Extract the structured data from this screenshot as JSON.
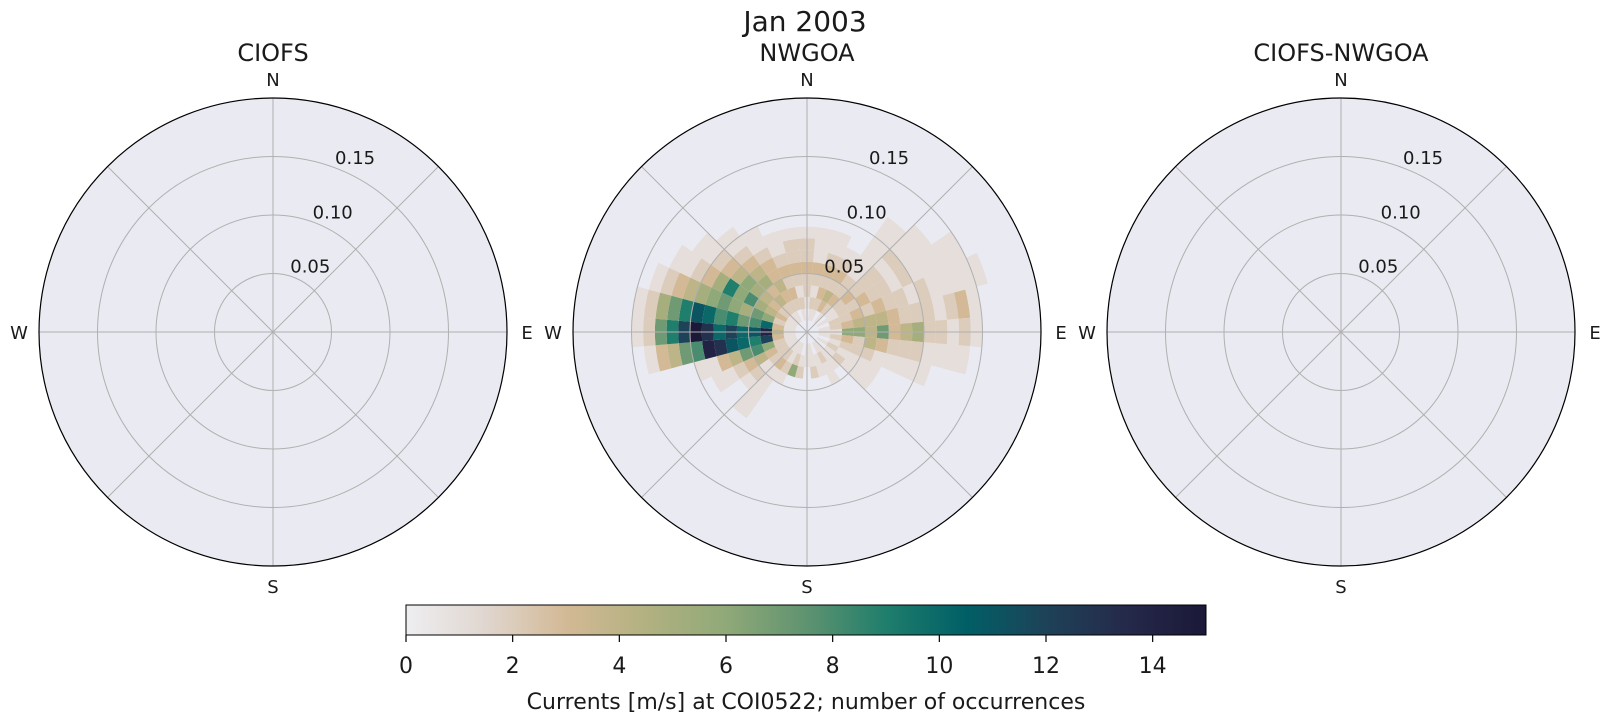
{
  "suptitle": "Jan 2003",
  "chart_data": {
    "type": "polar-histogram",
    "panels": [
      {
        "title": "CIOFS",
        "has_data": false
      },
      {
        "title": "NWGOA",
        "has_data": true
      },
      {
        "title": "CIOFS-NWGOA",
        "has_data": false
      }
    ],
    "compass": {
      "n": "N",
      "e": "E",
      "s": "S",
      "w": "W"
    },
    "radial": {
      "rmax": 0.2,
      "rings": [
        0.05,
        0.1,
        0.15,
        0.2
      ],
      "tick_labels": [
        "0.05",
        "0.10",
        "0.15"
      ],
      "tick_angle_deg": 22.5
    },
    "colorbar": {
      "label": "Currents [m/s] at COI0522; number of occurrences",
      "min": 0,
      "max": 15,
      "ticks": [
        "0",
        "2",
        "4",
        "6",
        "8",
        "10",
        "12",
        "14"
      ],
      "colormap": [
        "#eeeef1",
        "#e0d6cf",
        "#d3b995",
        "#b2b181",
        "#90a978",
        "#5f9370",
        "#1f7e6c",
        "#005f66",
        "#1e4258",
        "#25294a",
        "#1b1838"
      ]
    },
    "bin_width_m_s": 0.01,
    "sector_width_deg": 10,
    "nwgoa_counts": [
      {
        "dir_deg": 0,
        "counts": [
          0,
          0,
          1,
          2,
          2,
          3,
          2,
          2,
          1
        ]
      },
      {
        "dir_deg": 10,
        "counts": [
          0,
          1,
          2,
          1,
          2,
          3,
          1,
          1,
          1
        ]
      },
      {
        "dir_deg": 20,
        "counts": [
          0,
          1,
          2,
          3,
          2,
          3,
          2,
          1,
          1
        ]
      },
      {
        "dir_deg": 30,
        "counts": [
          0,
          0,
          3,
          4,
          2,
          3,
          2,
          1
        ]
      },
      {
        "dir_deg": 40,
        "counts": [
          0,
          1,
          2,
          3,
          2,
          2,
          1,
          1,
          1,
          1,
          1,
          1
        ]
      },
      {
        "dir_deg": 50,
        "counts": [
          0,
          0,
          1,
          2,
          3,
          2,
          2,
          2,
          1,
          2,
          1,
          1,
          1
        ]
      },
      {
        "dir_deg": 60,
        "counts": [
          0,
          1,
          1,
          2,
          2,
          3,
          2,
          2,
          1,
          2,
          1,
          1,
          1,
          1,
          1
        ]
      },
      {
        "dir_deg": 70,
        "counts": [
          0,
          0,
          2,
          2,
          3,
          2,
          3,
          2,
          2,
          1,
          2,
          1,
          1,
          1,
          1,
          1
        ]
      },
      {
        "dir_deg": 80,
        "counts": [
          0,
          1,
          2,
          3,
          4,
          4,
          4,
          3,
          2,
          2,
          2,
          1,
          2,
          3,
          1
        ]
      },
      {
        "dir_deg": 90,
        "counts": [
          0,
          1,
          1,
          6,
          6,
          4,
          7,
          3,
          4,
          5,
          2,
          2,
          1,
          2,
          1
        ]
      },
      {
        "dir_deg": 100,
        "counts": [
          0,
          1,
          2,
          3,
          2,
          4,
          3,
          2,
          2,
          2,
          1,
          1,
          1,
          1
        ]
      },
      {
        "dir_deg": 110,
        "counts": [
          0,
          0,
          1,
          2,
          2,
          2,
          1,
          1,
          1,
          1,
          1
        ]
      },
      {
        "dir_deg": 120,
        "counts": [
          0,
          1,
          2,
          1,
          1,
          1,
          1
        ]
      },
      {
        "dir_deg": 130,
        "counts": [
          0,
          0,
          1,
          2,
          1,
          1,
          1
        ]
      },
      {
        "dir_deg": 140,
        "counts": [
          0,
          1,
          1,
          1
        ]
      },
      {
        "dir_deg": 150,
        "counts": [
          0,
          1,
          2,
          1,
          1
        ]
      },
      {
        "dir_deg": 160,
        "counts": [
          0,
          0,
          1,
          1
        ]
      },
      {
        "dir_deg": 170,
        "counts": [
          0,
          1,
          1,
          2
        ]
      },
      {
        "dir_deg": 180,
        "counts": [
          0,
          1,
          1
        ]
      },
      {
        "dir_deg": 190,
        "counts": [
          0,
          0,
          1,
          2
        ]
      },
      {
        "dir_deg": 200,
        "counts": [
          0,
          1,
          2,
          6
        ]
      },
      {
        "dir_deg": 210,
        "counts": [
          0,
          1,
          1,
          2,
          1
        ]
      },
      {
        "dir_deg": 220,
        "counts": [
          0,
          1,
          2,
          3,
          1,
          1,
          1,
          1,
          1
        ]
      },
      {
        "dir_deg": 230,
        "counts": [
          0,
          1,
          2,
          2,
          1,
          2,
          1
        ]
      },
      {
        "dir_deg": 240,
        "counts": [
          0,
          1,
          2,
          3,
          4,
          3,
          2,
          1,
          1
        ]
      },
      {
        "dir_deg": 250,
        "counts": [
          0,
          1,
          2,
          6,
          8,
          7,
          4,
          3,
          1,
          1
        ]
      },
      {
        "dir_deg": 260,
        "counts": [
          0,
          1,
          3,
          12,
          9,
          10,
          11,
          13,
          14,
          8,
          7,
          4,
          3,
          1
        ]
      },
      {
        "dir_deg": 270,
        "counts": [
          0,
          1,
          4,
          14,
          11,
          10,
          12,
          10,
          13,
          15,
          12,
          9,
          7,
          2,
          1
        ]
      },
      {
        "dir_deg": 280,
        "counts": [
          0,
          1,
          3,
          10,
          8,
          7,
          9,
          8,
          10,
          11,
          9,
          7,
          5,
          2,
          1
        ]
      },
      {
        "dir_deg": 290,
        "counts": [
          0,
          1,
          2,
          6,
          7,
          5,
          6,
          7,
          6,
          5,
          4,
          3,
          2,
          1
        ]
      },
      {
        "dir_deg": 300,
        "counts": [
          0,
          1,
          3,
          4,
          5,
          8,
          6,
          9,
          5,
          3,
          2,
          1,
          1
        ]
      },
      {
        "dir_deg": 310,
        "counts": [
          0,
          1,
          2,
          3,
          4,
          5,
          6,
          4,
          3,
          2,
          1,
          1
        ]
      },
      {
        "dir_deg": 320,
        "counts": [
          0,
          1,
          2,
          4,
          3,
          5,
          4,
          3,
          2,
          1,
          1
        ]
      },
      {
        "dir_deg": 330,
        "counts": [
          0,
          1,
          2,
          3,
          4,
          3,
          3,
          2,
          1,
          1
        ]
      },
      {
        "dir_deg": 340,
        "counts": [
          0,
          0,
          2,
          3,
          2,
          3,
          2,
          1,
          1
        ]
      },
      {
        "dir_deg": 350,
        "counts": [
          0,
          1,
          2,
          1,
          2,
          3,
          2,
          2,
          1
        ]
      }
    ]
  }
}
